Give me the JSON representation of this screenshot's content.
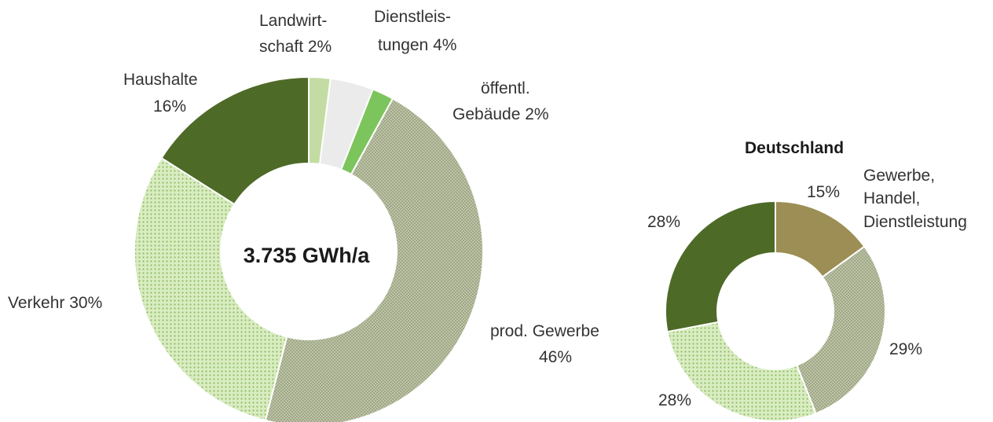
{
  "chart_data": [
    {
      "type": "pie",
      "center_label": "3.735 GWh/a",
      "slices": [
        {
          "label_lines": [
            "Landwirt-",
            "schaft 2%"
          ],
          "value": 2,
          "color": "#c3dca4",
          "pattern": "solid"
        },
        {
          "label_lines": [
            "Dienstleis-",
            "tungen 4%"
          ],
          "value": 4,
          "color": "#ebebeb",
          "pattern": "solid"
        },
        {
          "label_lines": [
            "öffentl.",
            "Gebäude 2%"
          ],
          "value": 2,
          "color": "#7cc45c",
          "pattern": "solid"
        },
        {
          "label_lines": [
            "prod. Gewerbe",
            "46%"
          ],
          "value": 46,
          "color": "#b4bca0",
          "pattern": "crosshatch"
        },
        {
          "label_lines": [
            "Verkehr 30%"
          ],
          "value": 30,
          "color": "#cfe6b0",
          "pattern": "dots"
        },
        {
          "label_lines": [
            "Haushalte",
            "16%"
          ],
          "value": 16,
          "color": "#4e6a27",
          "pattern": "solid"
        }
      ]
    },
    {
      "type": "pie",
      "title": "Deutschland",
      "slices": [
        {
          "label_lines": [
            "15%"
          ],
          "name_lines": [
            "Gewerbe,",
            "Handel,",
            "Dienstleistung"
          ],
          "value": 15,
          "color": "#9c8e54",
          "pattern": "solid"
        },
        {
          "label_lines": [
            "29%"
          ],
          "value": 29,
          "color": "#b4bca0",
          "pattern": "crosshatch"
        },
        {
          "label_lines": [
            "28%"
          ],
          "value": 28,
          "color": "#cfe6b0",
          "pattern": "dots"
        },
        {
          "label_lines": [
            "28%"
          ],
          "value": 28,
          "color": "#4e6a27",
          "pattern": "solid"
        }
      ]
    }
  ]
}
